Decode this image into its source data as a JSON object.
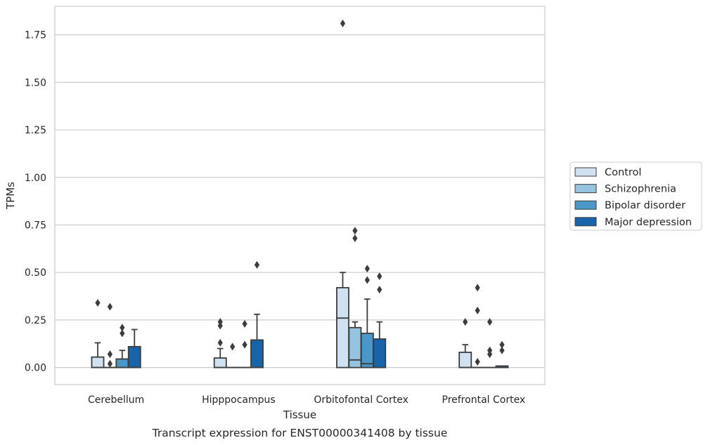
{
  "chart_data": {
    "type": "box",
    "xlabel": "Tissue",
    "ylabel": "TPMs",
    "caption": "Transcript expression for ENST00000341408 by tissue",
    "ylim": [
      -0.09,
      1.9
    ],
    "yticks": [
      0.0,
      0.25,
      0.5,
      0.75,
      1.0,
      1.25,
      1.5,
      1.75
    ],
    "ytick_labels": [
      "0.00",
      "0.25",
      "0.50",
      "0.75",
      "1.00",
      "1.25",
      "1.50",
      "1.75"
    ],
    "grid": "horizontal",
    "legend_position": "right",
    "categories": [
      "Cerebellum",
      "Hipppocampus",
      "Orbitofontal Cortex",
      "Prefrontal Cortex"
    ],
    "series": [
      {
        "name": "Control",
        "color": "#d0e1f2",
        "boxes": [
          {
            "q1": 0.0,
            "median": 0.0,
            "q3": 0.055,
            "whislo": 0.0,
            "whishi": 0.13,
            "fliers": [
              0.34
            ]
          },
          {
            "q1": 0.0,
            "median": 0.0,
            "q3": 0.05,
            "whislo": 0.0,
            "whishi": 0.1,
            "fliers": [
              0.13,
              0.22,
              0.24
            ]
          },
          {
            "q1": 0.0,
            "median": 0.26,
            "q3": 0.42,
            "whislo": 0.0,
            "whishi": 0.5,
            "fliers": [
              1.81
            ]
          },
          {
            "q1": 0.0,
            "median": 0.0,
            "q3": 0.08,
            "whislo": 0.0,
            "whishi": 0.12,
            "fliers": [
              0.24
            ]
          }
        ]
      },
      {
        "name": "Schizophrenia",
        "color": "#94c4df",
        "boxes": [
          {
            "q1": 0.0,
            "median": 0.0,
            "q3": 0.0,
            "whislo": 0.0,
            "whishi": 0.0,
            "fliers": [
              0.02,
              0.07,
              0.32
            ]
          },
          {
            "q1": 0.0,
            "median": 0.0,
            "q3": 0.0,
            "whislo": 0.0,
            "whishi": 0.0,
            "fliers": [
              0.11
            ]
          },
          {
            "q1": 0.0,
            "median": 0.04,
            "q3": 0.21,
            "whislo": 0.0,
            "whishi": 0.24,
            "fliers": [
              0.68,
              0.72
            ]
          },
          {
            "q1": 0.0,
            "median": 0.0,
            "q3": 0.0,
            "whislo": 0.0,
            "whishi": 0.0,
            "fliers": [
              0.03,
              0.3,
              0.42
            ]
          }
        ]
      },
      {
        "name": "Bipolar disorder",
        "color": "#4a98c9",
        "boxes": [
          {
            "q1": 0.0,
            "median": 0.0,
            "q3": 0.045,
            "whislo": 0.0,
            "whishi": 0.09,
            "fliers": [
              0.18,
              0.21
            ]
          },
          {
            "q1": 0.0,
            "median": 0.0,
            "q3": 0.0,
            "whislo": 0.0,
            "whishi": 0.0,
            "fliers": [
              0.12,
              0.23
            ]
          },
          {
            "q1": 0.0,
            "median": 0.02,
            "q3": 0.18,
            "whislo": 0.0,
            "whishi": 0.36,
            "fliers": [
              0.46,
              0.52
            ]
          },
          {
            "q1": 0.0,
            "median": 0.0,
            "q3": 0.0,
            "whislo": 0.0,
            "whishi": 0.0,
            "fliers": [
              0.07,
              0.09,
              0.24
            ]
          }
        ]
      },
      {
        "name": "Major depression",
        "color": "#1764ab",
        "boxes": [
          {
            "q1": 0.0,
            "median": 0.0,
            "q3": 0.11,
            "whislo": 0.0,
            "whishi": 0.2,
            "fliers": []
          },
          {
            "q1": 0.0,
            "median": 0.0,
            "q3": 0.145,
            "whislo": 0.0,
            "whishi": 0.28,
            "fliers": [
              0.54
            ]
          },
          {
            "q1": 0.0,
            "median": 0.0,
            "q3": 0.15,
            "whislo": 0.0,
            "whishi": 0.24,
            "fliers": [
              0.41,
              0.48
            ]
          },
          {
            "q1": 0.0,
            "median": 0.0,
            "q3": 0.008,
            "whislo": 0.0,
            "whishi": 0.008,
            "fliers": [
              0.09,
              0.12
            ]
          }
        ]
      }
    ]
  }
}
